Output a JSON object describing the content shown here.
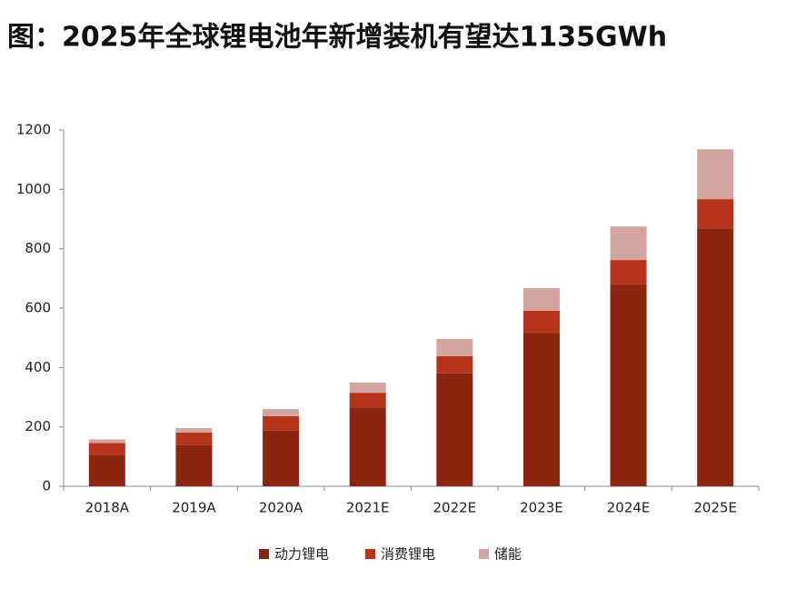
{
  "chart_data": {
    "type": "stacked_bar",
    "title": "图：2025年全球锂电池年新增装机有望达1135GWh",
    "categories": [
      "2018A",
      "2019A",
      "2020A",
      "2021E",
      "2022E",
      "2023E",
      "2024E",
      "2025E"
    ],
    "series": [
      {
        "name": "动力锂电",
        "color": "#8b2510",
        "values": [
          106,
          138,
          187,
          266,
          380,
          517,
          680,
          869
        ]
      },
      {
        "name": "消费锂电",
        "color": "#b5341a",
        "values": [
          40,
          43,
          49,
          49,
          58,
          74,
          82,
          98
        ]
      },
      {
        "name": "储能",
        "color": "#d4a5a0",
        "values": [
          12,
          15,
          24,
          34,
          58,
          76,
          113,
          168
        ]
      }
    ],
    "ylim": [
      0,
      1200
    ],
    "yticks": [
      0,
      200,
      400,
      600,
      800,
      1000,
      1200
    ],
    "grid": false
  }
}
